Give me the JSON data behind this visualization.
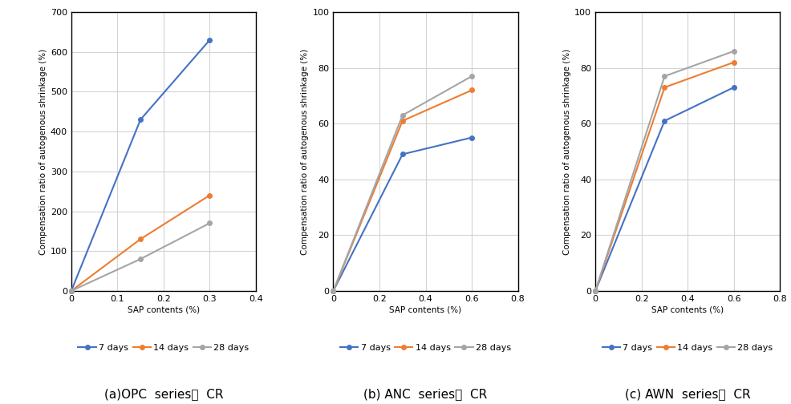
{
  "charts": [
    {
      "title": "(a)OPC  series의  CR",
      "xlabel": "SAP contents (%)",
      "ylabel": "Compensation ratio of autogenous shrinkage (%)",
      "xlim": [
        0,
        0.4
      ],
      "ylim": [
        0,
        700
      ],
      "xticks": [
        0,
        0.1,
        0.2,
        0.3,
        0.4
      ],
      "yticks": [
        0,
        100,
        200,
        300,
        400,
        500,
        600,
        700
      ],
      "series": [
        {
          "label": "7 days",
          "x": [
            0,
            0.15,
            0.3
          ],
          "y": [
            0,
            430,
            630
          ],
          "color": "#4472C4"
        },
        {
          "label": "14 days",
          "x": [
            0,
            0.15,
            0.3
          ],
          "y": [
            0,
            130,
            240
          ],
          "color": "#ED7D31"
        },
        {
          "label": "28 days",
          "x": [
            0,
            0.15,
            0.3
          ],
          "y": [
            0,
            80,
            170
          ],
          "color": "#A5A5A5"
        }
      ]
    },
    {
      "title": "(b) ANC  series의  CR",
      "xlabel": "SAP contents (%)",
      "ylabel": "Compensation ratio of autogenous shrinkage (%)",
      "xlim": [
        0,
        0.8
      ],
      "ylim": [
        0,
        100
      ],
      "xticks": [
        0,
        0.2,
        0.4,
        0.6,
        0.8
      ],
      "yticks": [
        0,
        20,
        40,
        60,
        80,
        100
      ],
      "series": [
        {
          "label": "7 days",
          "x": [
            0,
            0.3,
            0.6
          ],
          "y": [
            0,
            49,
            55
          ],
          "color": "#4472C4"
        },
        {
          "label": "14 days",
          "x": [
            0,
            0.3,
            0.6
          ],
          "y": [
            0,
            61,
            72
          ],
          "color": "#ED7D31"
        },
        {
          "label": "28 days",
          "x": [
            0,
            0.3,
            0.6
          ],
          "y": [
            0,
            63,
            77
          ],
          "color": "#A5A5A5"
        }
      ]
    },
    {
      "title": "(c) AWN  series의  CR",
      "xlabel": "SAP contents (%)",
      "ylabel": "Compensation ratio of autogenous shrinkage (%)",
      "xlim": [
        0,
        0.8
      ],
      "ylim": [
        0,
        100
      ],
      "xticks": [
        0,
        0.2,
        0.4,
        0.6,
        0.8
      ],
      "yticks": [
        0,
        20,
        40,
        60,
        80,
        100
      ],
      "series": [
        {
          "label": "7 days",
          "x": [
            0,
            0.3,
            0.6
          ],
          "y": [
            0,
            61,
            73
          ],
          "color": "#4472C4"
        },
        {
          "label": "14 days",
          "x": [
            0,
            0.3,
            0.6
          ],
          "y": [
            0,
            73,
            82
          ],
          "color": "#ED7D31"
        },
        {
          "label": "28 days",
          "x": [
            0,
            0.3,
            0.6
          ],
          "y": [
            0,
            77,
            86
          ],
          "color": "#A5A5A5"
        }
      ]
    }
  ],
  "legend_labels": [
    "7 days",
    "14 days",
    "28 days"
  ],
  "legend_colors": [
    "#4472C4",
    "#ED7D31",
    "#A5A5A5"
  ],
  "background_color": "#FFFFFF",
  "grid_color": "#D3D3D3",
  "axis_label_fontsize": 7.5,
  "tick_fontsize": 8,
  "title_fontsize": 11,
  "legend_fontsize": 8,
  "marker": "o",
  "markersize": 4,
  "linewidth": 1.5
}
